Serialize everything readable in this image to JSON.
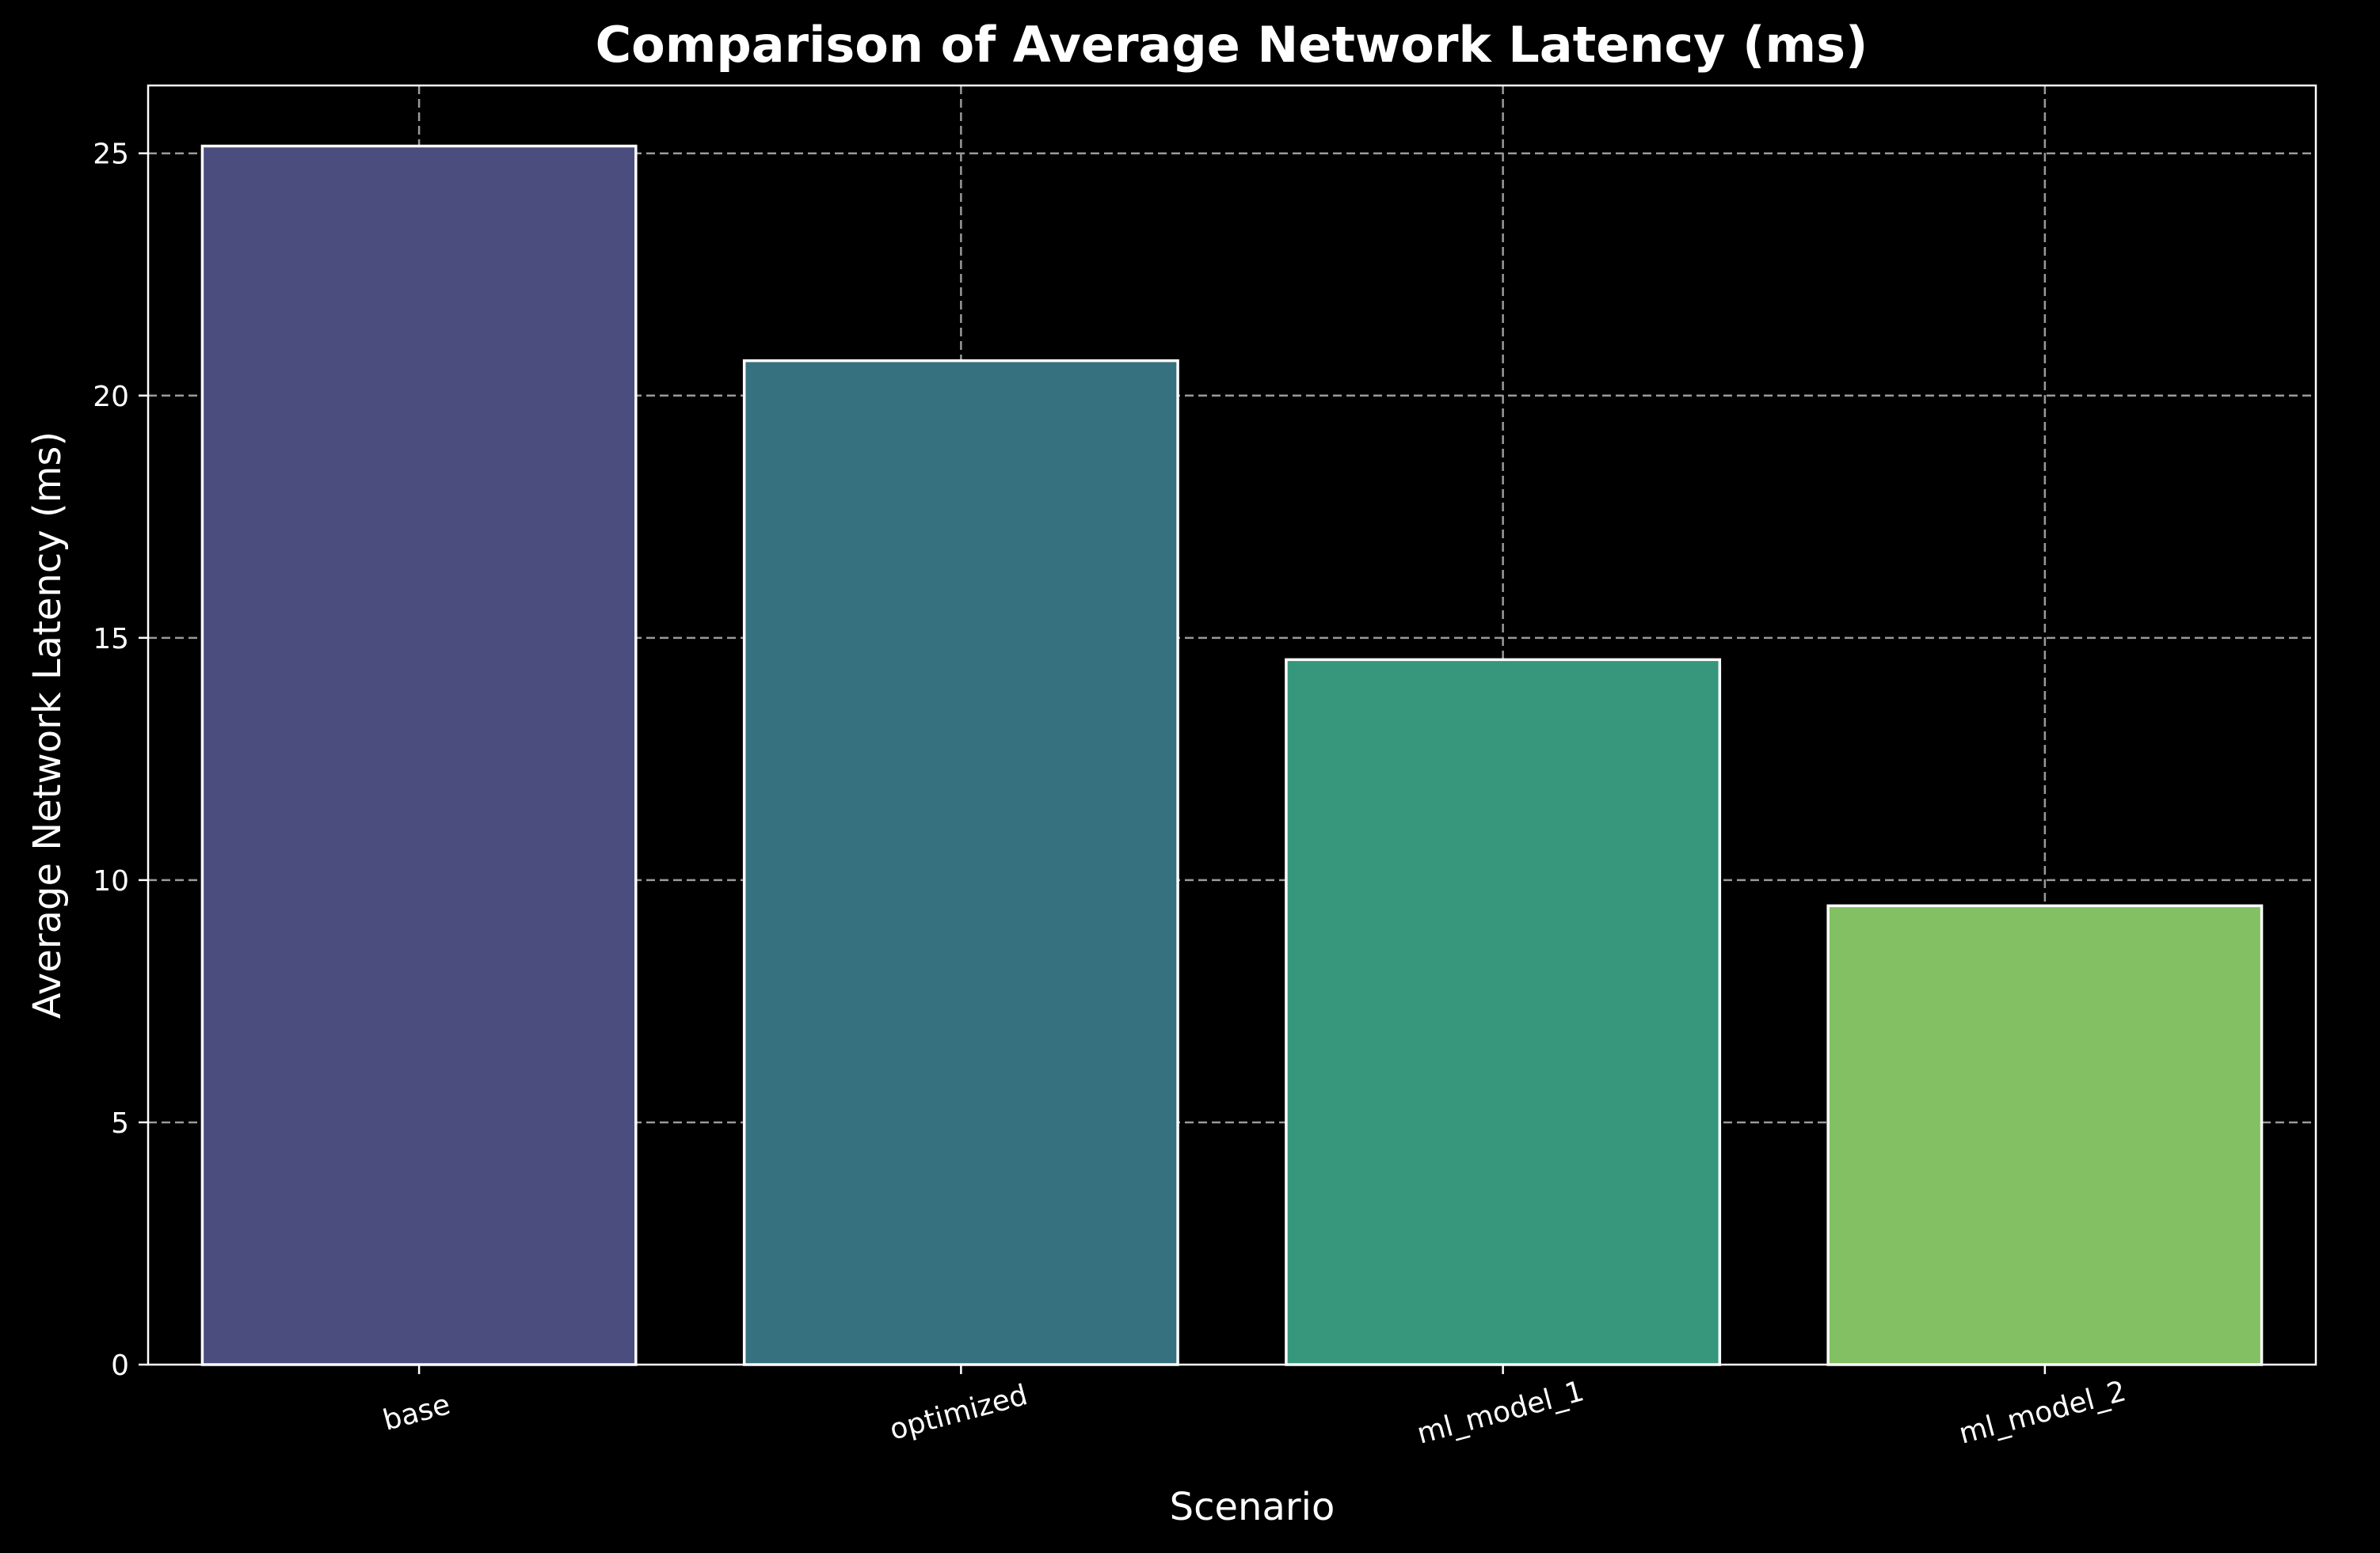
{
  "chart_data": {
    "type": "bar",
    "title": "Comparison of Average Network Latency (ms)",
    "xlabel": "Scenario",
    "ylabel": "Average Network Latency (ms)",
    "categories": [
      "base",
      "optimized",
      "ml_model_1",
      "ml_model_2"
    ],
    "values": [
      25.15,
      20.72,
      14.55,
      9.47
    ],
    "colors": [
      "#4a4d7e",
      "#36717f",
      "#36977c",
      "#82c063"
    ],
    "bar_edge_color": "#ffffff",
    "ylim": [
      0,
      26.4
    ],
    "yticks": [
      0,
      5,
      10,
      15,
      20,
      25
    ],
    "grid": true,
    "background": "#000000",
    "text_color": "#ffffff",
    "grid_color": "#9a9a9a"
  }
}
